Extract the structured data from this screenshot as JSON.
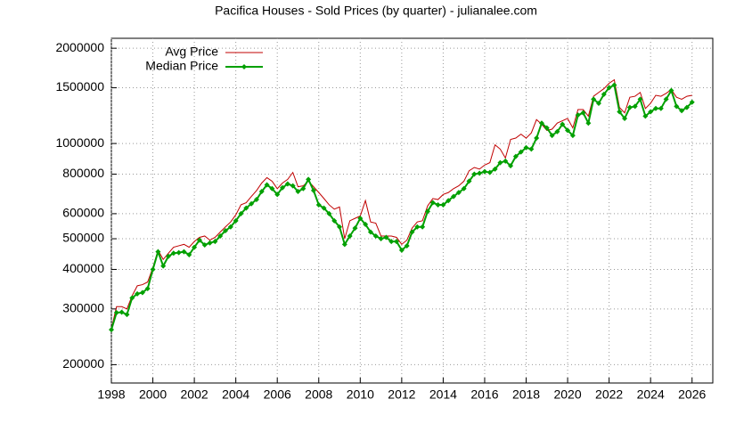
{
  "chart_data": {
    "type": "line",
    "title": "Pacifica Houses - Sold Prices (by quarter) - julianalee.com",
    "x": [
      1998,
      1998.25,
      1998.5,
      1998.75,
      1999,
      1999.25,
      1999.5,
      1999.75,
      2000,
      2000.25,
      2000.5,
      2000.75,
      2001,
      2001.25,
      2001.5,
      2001.75,
      2002,
      2002.25,
      2002.5,
      2002.75,
      2003,
      2003.25,
      2003.5,
      2003.75,
      2004,
      2004.25,
      2004.5,
      2004.75,
      2005,
      2005.25,
      2005.5,
      2005.75,
      2006,
      2006.25,
      2006.5,
      2006.75,
      2007,
      2007.25,
      2007.5,
      2007.75,
      2008,
      2008.25,
      2008.5,
      2008.75,
      2009,
      2009.25,
      2009.5,
      2009.75,
      2010,
      2010.25,
      2010.5,
      2010.75,
      2011,
      2011.25,
      2011.5,
      2011.75,
      2012,
      2012.25,
      2012.5,
      2012.75,
      2013,
      2013.25,
      2013.5,
      2013.75,
      2014,
      2014.25,
      2014.5,
      2014.75,
      2015,
      2015.25,
      2015.5,
      2015.75,
      2016,
      2016.25,
      2016.5,
      2016.75,
      2017,
      2017.25,
      2017.5,
      2017.75,
      2018,
      2018.25,
      2018.5,
      2018.75,
      2019,
      2019.25,
      2019.5,
      2019.75,
      2020,
      2020.25,
      2020.5,
      2020.75,
      2021,
      2021.25,
      2021.5,
      2021.75,
      2022,
      2022.25,
      2022.5,
      2022.75,
      2023,
      2023.25,
      2023.5,
      2023.75,
      2024,
      2024.25,
      2024.5,
      2024.75,
      2025,
      2025.25,
      2025.5,
      2025.75,
      2026
    ],
    "series": [
      {
        "name": "Avg Price",
        "color": "#c00000",
        "markers": false,
        "values": [
          260000,
          305000,
          305000,
          300000,
          330000,
          355000,
          358000,
          365000,
          405000,
          460000,
          430000,
          450000,
          470000,
          475000,
          480000,
          470000,
          490000,
          505000,
          510000,
          495000,
          505000,
          525000,
          545000,
          565000,
          595000,
          640000,
          650000,
          680000,
          710000,
          750000,
          780000,
          760000,
          720000,
          750000,
          770000,
          810000,
          730000,
          735000,
          760000,
          730000,
          700000,
          670000,
          640000,
          620000,
          630000,
          500000,
          570000,
          580000,
          590000,
          660000,
          565000,
          560000,
          510000,
          510000,
          510000,
          505000,
          480000,
          495000,
          540000,
          565000,
          570000,
          635000,
          670000,
          665000,
          690000,
          700000,
          720000,
          735000,
          760000,
          820000,
          840000,
          830000,
          855000,
          870000,
          990000,
          960000,
          900000,
          1030000,
          1040000,
          1070000,
          1040000,
          1080000,
          1190000,
          1150000,
          1100000,
          1110000,
          1160000,
          1180000,
          1200000,
          1120000,
          1280000,
          1280000,
          1220000,
          1410000,
          1450000,
          1490000,
          1550000,
          1590000,
          1300000,
          1250000,
          1400000,
          1410000,
          1450000,
          1290000,
          1340000,
          1420000,
          1410000,
          1440000,
          1480000,
          1400000,
          1380000,
          1410000,
          1420000
        ]
      },
      {
        "name": "Median Price",
        "color": "#00a000",
        "markers": true,
        "values": [
          258000,
          292000,
          293000,
          288000,
          325000,
          335000,
          338000,
          348000,
          400000,
          455000,
          410000,
          440000,
          450000,
          452000,
          455000,
          445000,
          470000,
          495000,
          478000,
          485000,
          490000,
          510000,
          530000,
          545000,
          570000,
          600000,
          625000,
          645000,
          665000,
          705000,
          740000,
          720000,
          690000,
          725000,
          745000,
          735000,
          705000,
          720000,
          770000,
          710000,
          640000,
          625000,
          600000,
          570000,
          545000,
          480000,
          510000,
          540000,
          580000,
          555000,
          525000,
          510000,
          500000,
          505000,
          490000,
          490000,
          460000,
          475000,
          525000,
          545000,
          545000,
          610000,
          650000,
          640000,
          640000,
          660000,
          680000,
          700000,
          720000,
          760000,
          800000,
          805000,
          815000,
          810000,
          830000,
          870000,
          880000,
          850000,
          910000,
          940000,
          970000,
          960000,
          1040000,
          1160000,
          1120000,
          1060000,
          1090000,
          1150000,
          1100000,
          1060000,
          1230000,
          1250000,
          1160000,
          1380000,
          1340000,
          1430000,
          1500000,
          1530000,
          1260000,
          1200000,
          1300000,
          1310000,
          1380000,
          1220000,
          1260000,
          1290000,
          1290000,
          1380000,
          1470000,
          1310000,
          1270000,
          1300000,
          1350000
        ]
      }
    ],
    "xlim": [
      1998,
      2027
    ],
    "xticks": [
      1998,
      2000,
      2002,
      2004,
      2006,
      2008,
      2010,
      2012,
      2014,
      2016,
      2018,
      2020,
      2022,
      2024,
      2026
    ],
    "ylim": [
      175000,
      2150000
    ],
    "yticks": [
      200000,
      300000,
      400000,
      500000,
      600000,
      800000,
      1000000,
      1500000,
      2000000
    ],
    "ylog": true,
    "grid": true,
    "legend": "top-left"
  }
}
